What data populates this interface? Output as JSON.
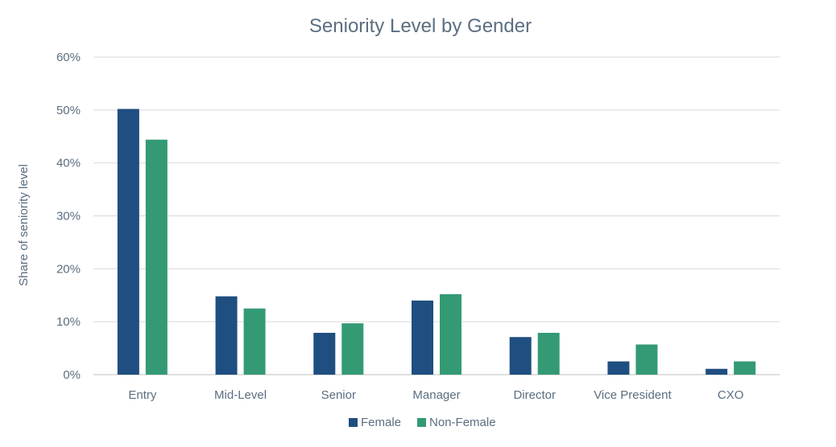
{
  "chart_data": {
    "type": "bar",
    "title": "Seniority Level by Gender",
    "xlabel": "",
    "ylabel": "Share of seniority level",
    "categories": [
      "Entry",
      "Mid-Level",
      "Senior",
      "Manager",
      "Director",
      "Vice President",
      "CXO"
    ],
    "series": [
      {
        "name": "Female",
        "color": "#1f4e80",
        "values": [
          50.2,
          14.8,
          7.9,
          14.0,
          7.1,
          2.5,
          1.1
        ]
      },
      {
        "name": "Non-Female",
        "color": "#339a74",
        "values": [
          44.4,
          12.5,
          9.7,
          15.2,
          7.9,
          5.7,
          2.5
        ]
      }
    ],
    "ylim": [
      0,
      60
    ],
    "yticks": [
      0,
      10,
      20,
      30,
      40,
      50,
      60
    ],
    "ytick_labels": [
      "0%",
      "10%",
      "20%",
      "30%",
      "40%",
      "50%",
      "60%"
    ],
    "grid": true,
    "legend_position": "bottom"
  }
}
